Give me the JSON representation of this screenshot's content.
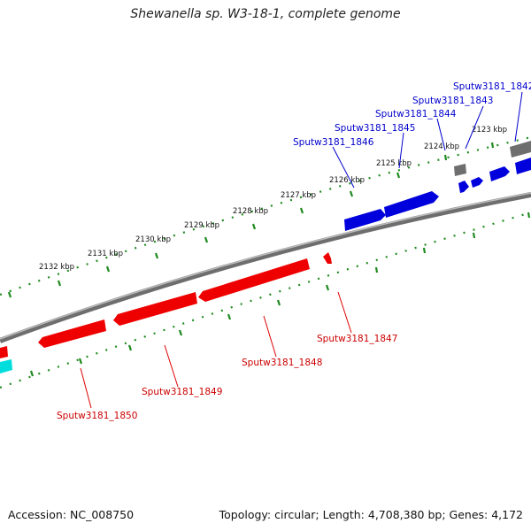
{
  "title": "Shewanella sp. W3-18-1, complete genome",
  "footer": {
    "accession": "Accession: NC_008750",
    "topology": "Topology: circular; Length: 4,708,380 bp; Genes: 4,172"
  },
  "colors": {
    "forward": "#0000dd",
    "reverse": "#ee0000",
    "other": "#6e6e6e",
    "rna": "#00dddd",
    "ticks": "#1f8a1f",
    "backbone": "#707070"
  },
  "kbp_labels": [
    "2123 kbp",
    "2124 kbp",
    "2125 kbp",
    "2126 kbp",
    "2127 kbp",
    "2128 kbp",
    "2129 kbp",
    "2130 kbp",
    "2131 kbp",
    "2132 kbp"
  ],
  "forward_labels": [
    "Sputw3181_1842",
    "Sputw3181_1843",
    "Sputw3181_1844",
    "Sputw3181_1845",
    "Sputw3181_1846"
  ],
  "reverse_labels": [
    "Sputw3181_1847",
    "Sputw3181_1848",
    "Sputw3181_1849",
    "Sputw3181_1850"
  ]
}
